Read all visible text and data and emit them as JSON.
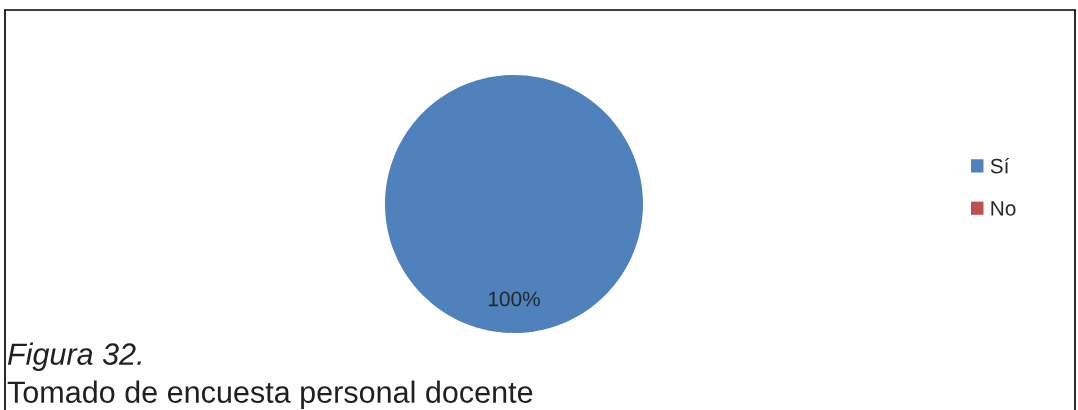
{
  "chart_data": {
    "type": "pie",
    "categories": [
      "Sí",
      "No"
    ],
    "values": [
      100,
      0
    ],
    "colors": [
      "#4f81bd",
      "#c0504d"
    ],
    "value_labels": [
      "100%",
      null
    ],
    "legend": "right",
    "annotations": [
      "Figura 32.",
      "Tomado de encuesta personal docente"
    ]
  }
}
